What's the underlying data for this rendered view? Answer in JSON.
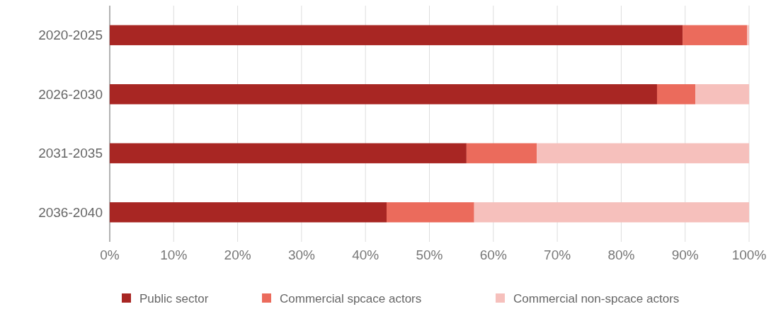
{
  "chart_data": {
    "type": "bar",
    "orientation": "horizontal",
    "stacked": true,
    "categories": [
      "2020-2025",
      "2026-2030",
      "2031-2035",
      "2036-2040"
    ],
    "series": [
      {
        "name": "Public sector",
        "color": "#a82623",
        "values": [
          89.6,
          85.6,
          55.8,
          43.3
        ]
      },
      {
        "name": "Commercial spcace actors",
        "color": "#eb6b5c",
        "values": [
          10.1,
          6.0,
          11.0,
          13.7
        ]
      },
      {
        "name": "Commercial non-spcace actors",
        "color": "#f6c0bc",
        "values": [
          0.3,
          8.4,
          33.2,
          43.0
        ]
      }
    ],
    "xlim": [
      0,
      100
    ],
    "xticks": [
      {
        "value": 0,
        "label": "0%"
      },
      {
        "value": 10,
        "label": "10%"
      },
      {
        "value": 20,
        "label": "20%"
      },
      {
        "value": 30,
        "label": "30%"
      },
      {
        "value": 40,
        "label": "40%"
      },
      {
        "value": 50,
        "label": "50%"
      },
      {
        "value": 60,
        "label": "60%"
      },
      {
        "value": 70,
        "label": "70%"
      },
      {
        "value": 80,
        "label": "80%"
      },
      {
        "value": 90,
        "label": "90%"
      },
      {
        "value": 100,
        "label": "100%"
      }
    ],
    "grid": "x",
    "legend": "bottom"
  }
}
